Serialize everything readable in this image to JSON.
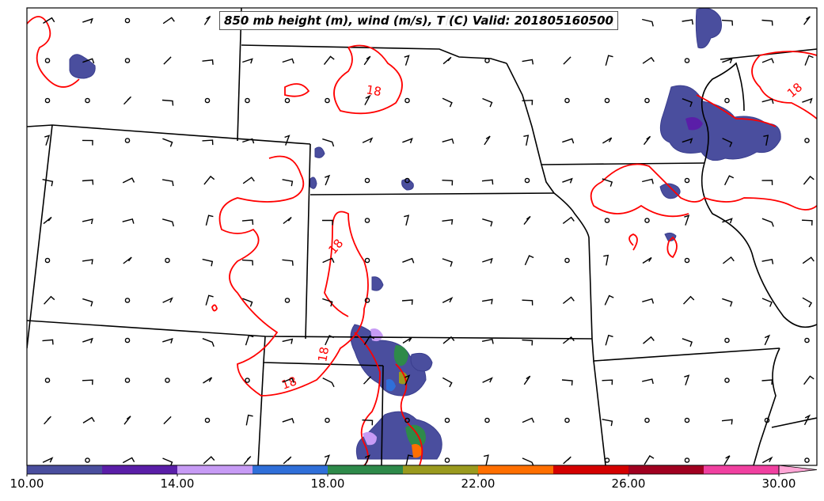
{
  "title": "850 mb height (m), wind (m/s), T (C) Valid: 201805160500",
  "contour_labels": [
    "18",
    "18",
    "18",
    "18",
    "18"
  ],
  "colorbar": {
    "tick_labels": [
      "10.00",
      "14.00",
      "18.00",
      "22.00",
      "26.00",
      "30.00"
    ],
    "min": 10,
    "max": 30,
    "step": 2,
    "colors": [
      "#4a4e9e",
      "#5a1ea8",
      "#c79bf5",
      "#2f6fd9",
      "#2e8a4a",
      "#9a9a1e",
      "#ff6f00",
      "#d40000",
      "#a00020",
      "#f040a0"
    ],
    "extend_color": "#ffa6d6"
  },
  "colors": {
    "temperature_contour": "#ff0000",
    "border": "#000000"
  }
}
